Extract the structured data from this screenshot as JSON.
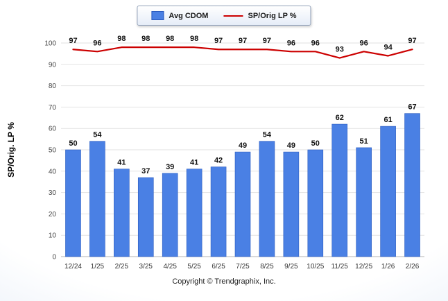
{
  "legend": {
    "items": [
      {
        "label": "Avg CDOM",
        "type": "bar",
        "color": "#4a80e4"
      },
      {
        "label": "SP/Orig LP %",
        "type": "line",
        "color": "#cc0000"
      }
    ]
  },
  "footer": {
    "copyright": "Copyright © Trendgraphix, Inc."
  },
  "chart_data": {
    "type": "bar",
    "categories": [
      "12/24",
      "1/25",
      "2/25",
      "3/25",
      "4/25",
      "5/25",
      "6/25",
      "7/25",
      "8/25",
      "9/25",
      "10/25",
      "11/25",
      "12/25",
      "1/26",
      "2/26"
    ],
    "series": [
      {
        "name": "Avg CDOM",
        "type": "bar",
        "color": "#4a80e4",
        "border": "#2a5bbf",
        "values": [
          50,
          54,
          41,
          37,
          39,
          41,
          42,
          49,
          54,
          49,
          50,
          62,
          51,
          61,
          67
        ]
      },
      {
        "name": "SP/Orig LP %",
        "type": "line",
        "color": "#cc0000",
        "values": [
          97,
          96,
          98,
          98,
          98,
          98,
          97,
          97,
          97,
          96,
          96,
          93,
          96,
          94,
          97
        ]
      }
    ],
    "title": "",
    "xlabel": "",
    "ylabel": "SP/Orig. LP %",
    "ylim": [
      0,
      100
    ],
    "yticks": [
      0,
      10,
      20,
      30,
      40,
      50,
      60,
      70,
      80,
      90,
      100
    ],
    "grid": true,
    "legend_position": "top"
  }
}
